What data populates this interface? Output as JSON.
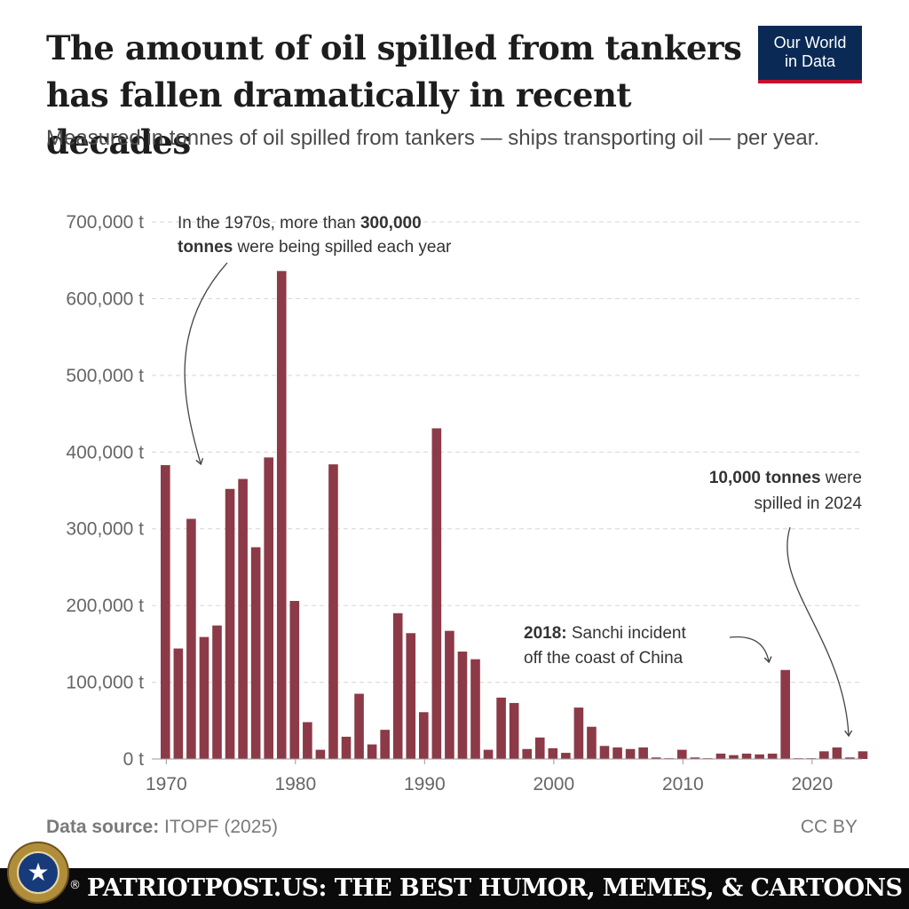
{
  "header": {
    "title": "The amount of oil spilled from tankers has fallen dramatically in recent decades",
    "subtitle": "Measured in tonnes of oil spilled from tankers — ships transporting oil — per year.",
    "logo_line1": "Our World",
    "logo_line2": "in Data"
  },
  "chart_data": {
    "type": "bar",
    "unit": "t",
    "ylim": [
      0,
      700000
    ],
    "grid": true,
    "x_ticks": [
      "1970",
      "1980",
      "1990",
      "2000",
      "2010",
      "2020"
    ],
    "y_ticks": [
      "0 t",
      "100,000 t",
      "200,000 t",
      "300,000 t",
      "400,000 t",
      "500,000 t",
      "600,000 t",
      "700,000 t"
    ],
    "bar_color": "#8c3a47",
    "years": [
      1970,
      1971,
      1972,
      1973,
      1974,
      1975,
      1976,
      1977,
      1978,
      1979,
      1980,
      1981,
      1982,
      1983,
      1984,
      1985,
      1986,
      1987,
      1988,
      1989,
      1990,
      1991,
      1992,
      1993,
      1994,
      1995,
      1996,
      1997,
      1998,
      1999,
      2000,
      2001,
      2002,
      2003,
      2004,
      2005,
      2006,
      2007,
      2008,
      2009,
      2010,
      2011,
      2012,
      2013,
      2014,
      2015,
      2016,
      2017,
      2018,
      2019,
      2020,
      2021,
      2022,
      2023,
      2024
    ],
    "values": [
      383000,
      144000,
      313000,
      159000,
      174000,
      352000,
      365000,
      276000,
      393000,
      636000,
      206000,
      48000,
      12000,
      384000,
      29000,
      85000,
      19000,
      38000,
      190000,
      164000,
      61000,
      431000,
      167000,
      140000,
      130000,
      12000,
      80000,
      73000,
      13000,
      28000,
      14000,
      8000,
      67000,
      42000,
      17000,
      15000,
      13000,
      15000,
      2000,
      1000,
      12000,
      2000,
      1000,
      7000,
      5000,
      7000,
      6000,
      7000,
      116000,
      1000,
      1000,
      10000,
      15000,
      2000,
      10000
    ]
  },
  "annotations": {
    "a1970s_pre": "In the 1970s, more than ",
    "a1970s_bold": "300,000",
    "a1970s_line2_bold": "tonnes",
    "a1970s_line2_rest": " were being spilled each year",
    "a2018_bold": "2018:",
    "a2018_rest": " Sanchi incident",
    "a2018_line2": "off the coast of China",
    "a2024_bold": "10,000 tonnes",
    "a2024_rest": " were",
    "a2024_line2": "spilled in 2024"
  },
  "footer": {
    "source_label": "Data source:",
    "source_value": " ITOPF (2025)",
    "license": "CC BY"
  },
  "banner": {
    "registered": "®",
    "text": "PATRIOTPOST.US: THE BEST HUMOR, MEMES, & CARTOONS"
  }
}
